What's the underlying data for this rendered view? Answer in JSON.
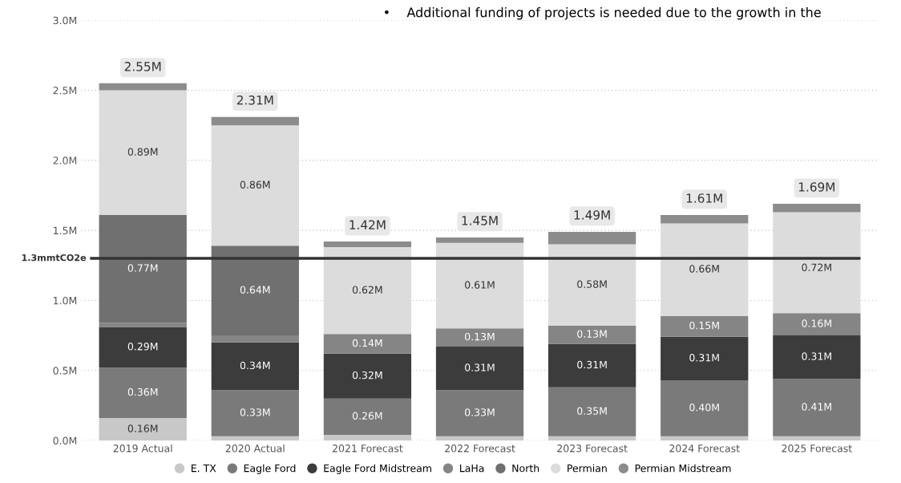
{
  "chart_data": {
    "type": "bar",
    "stacked": true,
    "annotations": [
      "•    Additional funding of projects is needed due to the growth in the"
    ],
    "categories": [
      "2019 Actual",
      "2020 Actual",
      "2021 Forecast",
      "2022 Forecast",
      "2023 Forecast",
      "2024 Forecast",
      "2025 Forecast"
    ],
    "series": [
      {
        "name": "E. TX",
        "color": "#c8c8c8",
        "values": [
          0.16,
          0.03,
          0.04,
          0.03,
          0.03,
          0.03,
          0.03
        ],
        "value_labels": [
          "0.16M",
          null,
          null,
          null,
          null,
          null,
          null
        ]
      },
      {
        "name": "Eagle Ford",
        "color": "#7a7a7a",
        "values": [
          0.36,
          0.33,
          0.26,
          0.33,
          0.35,
          0.4,
          0.41
        ],
        "value_labels": [
          "0.36M",
          "0.33M",
          "0.26M",
          "0.33M",
          "0.35M",
          "0.40M",
          "0.41M"
        ]
      },
      {
        "name": "Eagle Ford Midstream",
        "color": "#3c3c3c",
        "values": [
          0.29,
          0.34,
          0.32,
          0.31,
          0.31,
          0.31,
          0.31
        ],
        "value_labels": [
          "0.29M",
          "0.34M",
          "0.32M",
          "0.31M",
          "0.31M",
          "0.31M",
          "0.31M"
        ]
      },
      {
        "name": "LaHa",
        "color": "#858585",
        "values": [
          0.03,
          0.05,
          0.14,
          0.13,
          0.13,
          0.15,
          0.16
        ],
        "value_labels": [
          null,
          null,
          "0.14M",
          "0.13M",
          "0.13M",
          "0.15M",
          "0.16M"
        ]
      },
      {
        "name": "North",
        "color": "#707070",
        "values": [
          0.77,
          0.64,
          null,
          null,
          null,
          null,
          null
        ],
        "value_labels": [
          "0.77M",
          "0.64M",
          null,
          null,
          null,
          null,
          null
        ]
      },
      {
        "name": "Permian",
        "color": "#dcdcdc",
        "values": [
          0.89,
          0.86,
          0.62,
          0.61,
          0.58,
          0.66,
          0.72
        ],
        "value_labels": [
          "0.89M",
          "0.86M",
          "0.62M",
          "0.61M",
          "0.58M",
          "0.66M",
          "0.72M"
        ]
      },
      {
        "name": "Permian Midstream",
        "color": "#8c8c8c",
        "values": [
          0.05,
          0.06,
          0.04,
          0.04,
          0.09,
          0.06,
          0.06
        ],
        "value_labels": [
          null,
          null,
          null,
          null,
          null,
          null,
          null
        ]
      }
    ],
    "totals": [
      "2.55M",
      "2.31M",
      "1.42M",
      "1.45M",
      "1.49M",
      "1.61M",
      "1.69M"
    ],
    "ref_lines": [
      {
        "axis": "y",
        "value": 1.3,
        "label": "1.3mmtCO2e",
        "color": "#333333"
      }
    ],
    "ylim": [
      0,
      3.0
    ],
    "yticks": [
      {
        "value": 0,
        "label": "0.0M"
      },
      {
        "value": 0.5,
        "label": "0.5M"
      },
      {
        "value": 1.0,
        "label": "1.0M"
      },
      {
        "value": 1.5,
        "label": "1.5M"
      },
      {
        "value": 2.0,
        "label": "2.0M"
      },
      {
        "value": 2.5,
        "label": "2.5M"
      },
      {
        "value": 3.0,
        "label": "3.0M"
      }
    ],
    "grid": "y",
    "legend": "bottom"
  }
}
